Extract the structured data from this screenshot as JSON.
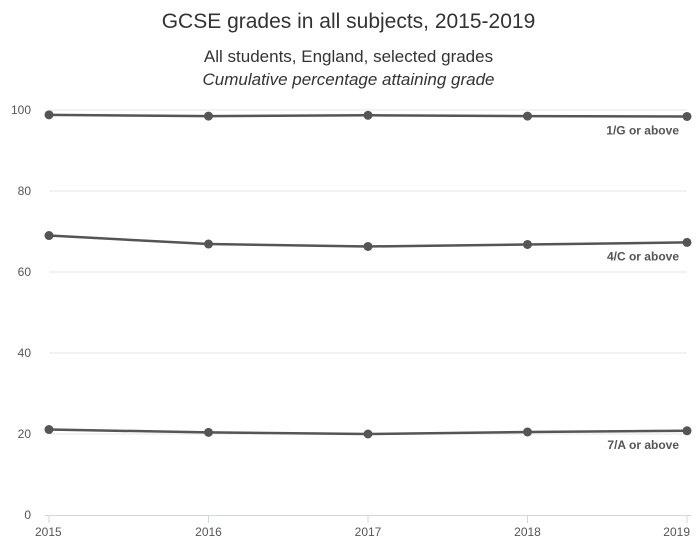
{
  "chart_data": {
    "type": "line",
    "title": "GCSE grades in all subjects, 2015-2019",
    "subtitle": "All students, England, selected grades",
    "subtitle2": "Cumulative percentage attaining grade",
    "x": [
      "2015",
      "2016",
      "2017",
      "2018",
      "2019"
    ],
    "ylim": [
      0,
      100
    ],
    "yticks": [
      0,
      20,
      40,
      60,
      80,
      100
    ],
    "grid": true,
    "series": [
      {
        "name": "1/G or above",
        "values": [
          98.8,
          98.5,
          98.7,
          98.5,
          98.4
        ]
      },
      {
        "name": "4/C or above",
        "values": [
          69.0,
          66.9,
          66.3,
          66.8,
          67.3
        ]
      },
      {
        "name": "7/A or above",
        "values": [
          21.1,
          20.4,
          20.0,
          20.5,
          20.8
        ]
      }
    ],
    "colors": {
      "line": "#555555",
      "grid": "#e6e6e6",
      "axis": "#ccd6eb"
    }
  }
}
